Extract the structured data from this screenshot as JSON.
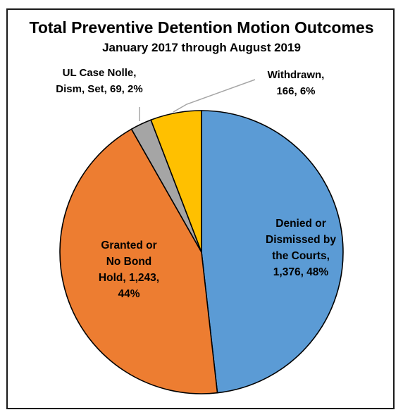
{
  "chart_data": {
    "type": "pie",
    "title": "Total Preventive Detention Motion Outcomes",
    "subtitle": "January 2017 through August 2019",
    "slices": [
      {
        "label_lines": [
          "Denied or",
          "Dismissed by",
          "the Courts,",
          "1,376, 48%"
        ],
        "value": 1376,
        "percent": 48,
        "color": "#5b9bd5"
      },
      {
        "label_lines": [
          "Granted or",
          "No Bond",
          "Hold, 1,243,",
          "44%"
        ],
        "value": 1243,
        "percent": 44,
        "color": "#ed7d31"
      },
      {
        "label_lines": [
          "UL Case Nolle,",
          "Dism, Set, 69, 2%"
        ],
        "value": 69,
        "percent": 2,
        "color": "#a5a5a5"
      },
      {
        "label_lines": [
          "Withdrawn,",
          "166, 6%"
        ],
        "value": 166,
        "percent": 6,
        "color": "#ffc000"
      }
    ]
  }
}
